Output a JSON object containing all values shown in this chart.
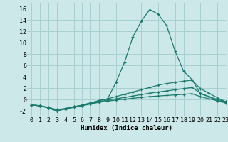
{
  "x": [
    0,
    1,
    2,
    3,
    4,
    5,
    6,
    7,
    8,
    9,
    10,
    11,
    12,
    13,
    14,
    15,
    16,
    17,
    18,
    19,
    20,
    21,
    22,
    23
  ],
  "line1": [
    -1.0,
    -1.1,
    -1.4,
    -1.8,
    -1.6,
    -1.3,
    -1.1,
    -0.8,
    -0.5,
    -0.3,
    -0.1,
    0.05,
    0.2,
    0.35,
    0.5,
    0.6,
    0.7,
    0.8,
    0.9,
    1.0,
    0.5,
    0.1,
    -0.2,
    -0.5
  ],
  "line2": [
    -1.0,
    -1.1,
    -1.5,
    -2.0,
    -1.7,
    -1.4,
    -1.1,
    -0.7,
    -0.4,
    -0.1,
    0.1,
    0.35,
    0.6,
    0.85,
    1.1,
    1.3,
    1.5,
    1.7,
    1.9,
    2.1,
    1.1,
    0.5,
    0.0,
    -0.4
  ],
  "line3": [
    -1.0,
    -1.1,
    -1.5,
    -2.0,
    -1.6,
    -1.3,
    -1.0,
    -0.6,
    -0.2,
    0.1,
    0.5,
    0.9,
    1.3,
    1.7,
    2.1,
    2.5,
    2.8,
    3.0,
    3.2,
    3.4,
    1.9,
    1.1,
    0.3,
    -0.4
  ],
  "line4": [
    -1.0,
    -1.1,
    -1.5,
    -2.0,
    -1.6,
    -1.3,
    -1.0,
    -0.6,
    -0.2,
    0.1,
    3.0,
    6.5,
    11.0,
    13.8,
    15.8,
    15.0,
    13.0,
    8.5,
    5.0,
    3.5,
    1.0,
    0.5,
    -0.3,
    -0.6
  ],
  "line_color": "#1a7a6e",
  "bg_color": "#cce8e8",
  "grid_color": "#a8d0d0",
  "xlabel": "Humidex (Indice chaleur)",
  "ylim": [
    -3,
    17
  ],
  "xlim": [
    -0.5,
    23
  ],
  "yticks": [
    -2,
    0,
    2,
    4,
    6,
    8,
    10,
    12,
    14,
    16
  ],
  "xticks": [
    0,
    1,
    2,
    3,
    4,
    5,
    6,
    7,
    8,
    9,
    10,
    11,
    12,
    13,
    14,
    15,
    16,
    17,
    18,
    19,
    20,
    21,
    22,
    23
  ],
  "xlabel_fontsize": 6.5,
  "tick_fontsize": 6.0
}
